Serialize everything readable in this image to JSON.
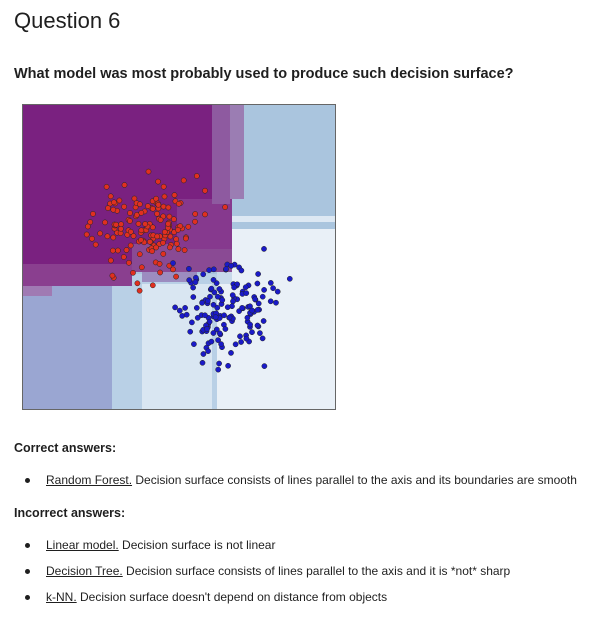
{
  "question": {
    "title": "Question 6",
    "text": "What model was most probably used to produce such decision surface?"
  },
  "figure": {
    "colors": {
      "purple": "#7a2180",
      "light_blue": "#a9c4de",
      "pale": "#e8eff7",
      "red_point": "#e03020",
      "blue_point": "#1a1ac8"
    }
  },
  "correct": {
    "heading": "Correct answers:",
    "items": [
      {
        "link": "Random Forest.",
        "text": " Decision surface consists of lines parallel to the axis and its boundaries are smooth"
      }
    ]
  },
  "incorrect": {
    "heading": "Incorrect answers:",
    "items": [
      {
        "link": "Linear model.",
        "text": " Decision surface is not linear"
      },
      {
        "link": "Decision Tree.",
        "text": " Decision surface consists of lines parallel to the axis and it is *not* sharp"
      },
      {
        "link": "k-NN.",
        "text": " Decision surface doesn't depend on distance from objects"
      }
    ]
  }
}
